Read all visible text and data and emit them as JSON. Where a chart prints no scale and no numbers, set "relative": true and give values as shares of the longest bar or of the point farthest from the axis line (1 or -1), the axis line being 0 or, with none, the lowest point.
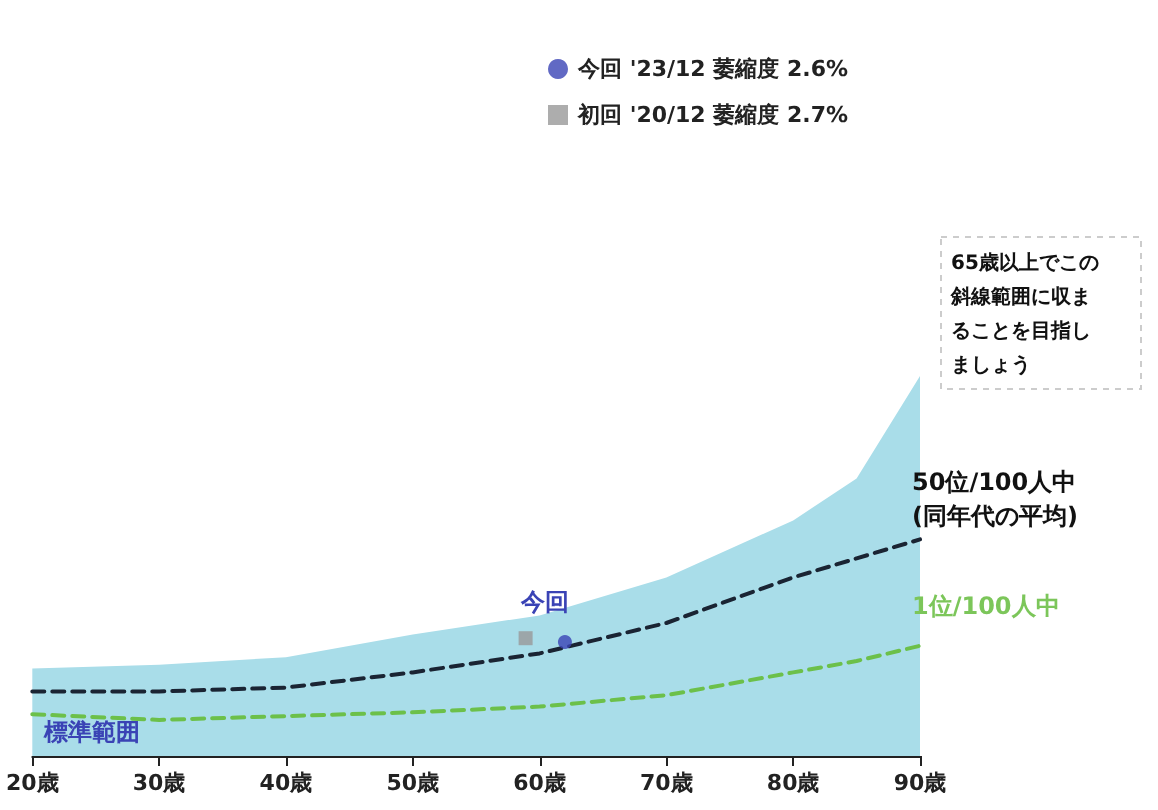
{
  "chart_data": {
    "type": "line",
    "relative": true,
    "x": [
      20,
      30,
      40,
      50,
      60,
      70,
      80,
      85,
      90
    ],
    "xlim": [
      20,
      90
    ],
    "xticks": [
      {
        "value": 20,
        "label": "20歳"
      },
      {
        "value": 30,
        "label": "30歳"
      },
      {
        "value": 40,
        "label": "40歳"
      },
      {
        "value": 50,
        "label": "50歳"
      },
      {
        "value": 60,
        "label": "60歳"
      },
      {
        "value": 70,
        "label": "70歳"
      },
      {
        "value": 80,
        "label": "80歳"
      },
      {
        "value": 90,
        "label": "90歳"
      }
    ],
    "series": [
      {
        "name": "標準範囲",
        "type": "area",
        "color": "#a9dde9",
        "values": [
          0.23,
          0.24,
          0.26,
          0.32,
          0.37,
          0.47,
          0.62,
          0.73,
          1.0
        ]
      },
      {
        "name": "50位/100人中\n(同年代の平均)",
        "color": "#1a2433",
        "line_style": "dashed",
        "values": [
          0.17,
          0.17,
          0.18,
          0.22,
          0.27,
          0.35,
          0.47,
          0.52,
          0.57
        ]
      },
      {
        "name": "1位/100人中",
        "color": "#6cc04a",
        "line_style": "dashed",
        "values": [
          0.11,
          0.095,
          0.105,
          0.115,
          0.13,
          0.16,
          0.22,
          0.25,
          0.29
        ]
      },
      {
        "name": "初回 '20/12 萎縮度 2.7%",
        "type": "scatter",
        "marker": "square",
        "color": "#999999",
        "x": [
          58.9
        ],
        "values": [
          0.31
        ]
      },
      {
        "name": "今回 '23/12 萎縮度 2.6%",
        "type": "scatter",
        "marker": "circle",
        "color": "#3a43b5",
        "x": [
          62
        ],
        "values": [
          0.3
        ]
      }
    ],
    "annotations": [
      "65歳以上でこの斜線範囲に収まることを目指しましょう",
      {
        "text": "今回",
        "x": 62,
        "y": 0.3
      }
    ],
    "legend": "top right",
    "grid": false
  }
}
